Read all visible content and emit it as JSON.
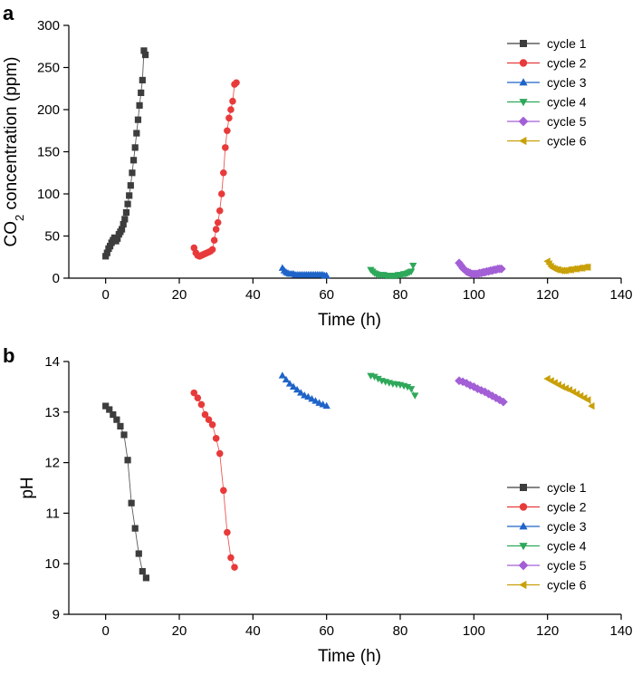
{
  "chart_data": [
    {
      "panel": "a",
      "type": "scatter",
      "xlabel": "Time (h)",
      "ylabel": {
        "prefix": "CO",
        "sub": "2",
        "suffix": " concentration (ppm)"
      },
      "xlim": [
        -10,
        140
      ],
      "ylim": [
        0,
        300
      ],
      "xticks": [
        0,
        20,
        40,
        60,
        80,
        100,
        120,
        140
      ],
      "yticks": [
        0,
        50,
        100,
        150,
        200,
        250,
        300
      ],
      "legend_position": "top-right",
      "series": [
        {
          "name": "cycle 1",
          "color": "#3d3d3d",
          "marker": "square",
          "x": [
            0,
            0.4,
            0.8,
            1.2,
            1.6,
            2,
            2.4,
            2.8,
            3.2,
            3.6,
            4,
            4.4,
            4.8,
            5.2,
            5.6,
            6,
            6.4,
            6.8,
            7.2,
            7.6,
            8,
            8.4,
            8.8,
            9.2,
            9.6,
            10,
            10.4,
            10.8
          ],
          "y": [
            26,
            30,
            35,
            38,
            42,
            45,
            48,
            44,
            47,
            52,
            55,
            58,
            64,
            70,
            78,
            88,
            98,
            110,
            125,
            140,
            155,
            172,
            188,
            205,
            220,
            235,
            270,
            265
          ]
        },
        {
          "name": "cycle 2",
          "color": "#e83a3a",
          "marker": "circle",
          "x": [
            24,
            24.5,
            25,
            25.5,
            26,
            26.5,
            27,
            27.5,
            28,
            28.5,
            29,
            29.5,
            30,
            30.5,
            31,
            31.5,
            32,
            32.5,
            33,
            33.5,
            34,
            34.5,
            35,
            35.5
          ],
          "y": [
            36,
            30,
            27,
            26,
            27,
            28,
            29,
            30,
            31,
            32,
            34,
            45,
            58,
            66,
            80,
            100,
            125,
            155,
            175,
            190,
            200,
            210,
            230,
            232
          ]
        },
        {
          "name": "cycle 3",
          "color": "#1e64c8",
          "marker": "triangle-up",
          "x": [
            48,
            48.5,
            49,
            49.5,
            50,
            50.5,
            51,
            51.5,
            52,
            52.5,
            53,
            53.5,
            54,
            54.5,
            55,
            55.5,
            56,
            56.5,
            57,
            57.5,
            58,
            58.5,
            59,
            59.5,
            60
          ],
          "y": [
            12,
            9,
            7,
            6,
            5,
            5,
            5,
            4,
            4,
            4,
            4,
            4,
            4,
            4,
            4,
            4,
            4,
            4,
            4,
            4,
            4,
            4,
            4,
            3,
            3
          ]
        },
        {
          "name": "cycle 4",
          "color": "#2ea85a",
          "marker": "triangle-down",
          "x": [
            72,
            72.5,
            73,
            73.5,
            74,
            74.5,
            75,
            75.5,
            76,
            76.5,
            77,
            77.5,
            78,
            78.5,
            79,
            79.5,
            80,
            80.5,
            81,
            81.5,
            82,
            82.5,
            83,
            83.5
          ],
          "y": [
            10,
            8,
            6,
            5,
            4,
            4,
            4,
            4,
            3,
            3,
            3,
            3,
            3,
            3,
            3,
            4,
            4,
            4,
            5,
            5,
            6,
            7,
            8,
            15
          ]
        },
        {
          "name": "cycle 5",
          "color": "#a35fd6",
          "marker": "diamond",
          "x": [
            96,
            96.5,
            97,
            97.5,
            98,
            98.5,
            99,
            99.5,
            100,
            100.5,
            101,
            101.5,
            102,
            102.5,
            103,
            103.5,
            104,
            104.5,
            105,
            105.5,
            106,
            106.5,
            107,
            107.5
          ],
          "y": [
            18,
            15,
            12,
            10,
            8,
            7,
            6,
            5,
            5,
            5,
            5,
            6,
            6,
            7,
            7,
            8,
            8,
            9,
            9,
            10,
            10,
            11,
            11,
            11
          ]
        },
        {
          "name": "cycle 6",
          "color": "#c9a008",
          "marker": "triangle-left",
          "x": [
            120,
            120.5,
            121,
            121.5,
            122,
            122.5,
            123,
            123.5,
            124,
            124.5,
            125,
            125.5,
            126,
            126.5,
            127,
            127.5,
            128,
            128.5,
            129,
            129.5,
            130,
            130.5,
            131
          ],
          "y": [
            20,
            17,
            14,
            12,
            11,
            10,
            10,
            9,
            9,
            9,
            9,
            10,
            10,
            10,
            11,
            11,
            11,
            12,
            12,
            12,
            13,
            13,
            13
          ]
        }
      ]
    },
    {
      "panel": "b",
      "type": "line",
      "xlabel": "Time (h)",
      "ylabel": "pH",
      "xlim": [
        -10,
        140
      ],
      "ylim": [
        9,
        14
      ],
      "xticks": [
        0,
        20,
        40,
        60,
        80,
        100,
        120,
        140
      ],
      "yticks": [
        9,
        10,
        11,
        12,
        13,
        14
      ],
      "legend_position": "bottom-right",
      "series": [
        {
          "name": "cycle 1",
          "color": "#3d3d3d",
          "marker": "square",
          "x": [
            0,
            1,
            2,
            3,
            4,
            5,
            6,
            7,
            8,
            9,
            10,
            11
          ],
          "y": [
            13.12,
            13.05,
            12.95,
            12.85,
            12.72,
            12.55,
            12.05,
            11.2,
            10.7,
            10.2,
            9.85,
            9.72
          ]
        },
        {
          "name": "cycle 2",
          "color": "#e83a3a",
          "marker": "circle",
          "x": [
            24,
            25,
            26,
            27,
            28,
            29,
            30,
            31,
            32,
            33,
            34,
            35
          ],
          "y": [
            13.38,
            13.28,
            13.15,
            12.95,
            12.85,
            12.75,
            12.48,
            12.18,
            11.45,
            10.62,
            10.12,
            9.93
          ]
        },
        {
          "name": "cycle 3",
          "color": "#1e64c8",
          "marker": "triangle-up",
          "x": [
            48,
            49,
            50,
            51,
            52,
            53,
            54,
            55,
            56,
            57,
            58,
            59,
            60
          ],
          "y": [
            13.72,
            13.64,
            13.56,
            13.5,
            13.44,
            13.38,
            13.33,
            13.3,
            13.26,
            13.22,
            13.18,
            13.15,
            13.12
          ]
        },
        {
          "name": "cycle 4",
          "color": "#2ea85a",
          "marker": "triangle-down",
          "x": [
            72,
            73,
            74,
            75,
            76,
            77,
            78,
            79,
            80,
            81,
            82,
            83,
            84
          ],
          "y": [
            13.72,
            13.7,
            13.66,
            13.62,
            13.6,
            13.58,
            13.56,
            13.55,
            13.54,
            13.52,
            13.5,
            13.46,
            13.33
          ]
        },
        {
          "name": "cycle 5",
          "color": "#a35fd6",
          "marker": "diamond",
          "x": [
            96,
            97,
            98,
            99,
            100,
            101,
            102,
            103,
            104,
            105,
            106,
            107,
            108
          ],
          "y": [
            13.62,
            13.6,
            13.57,
            13.53,
            13.5,
            13.46,
            13.43,
            13.4,
            13.36,
            13.32,
            13.28,
            13.24,
            13.2
          ]
        },
        {
          "name": "cycle 6",
          "color": "#c9a008",
          "marker": "triangle-left",
          "x": [
            120,
            121,
            122,
            123,
            124,
            125,
            126,
            127,
            128,
            129,
            130,
            131,
            132
          ],
          "y": [
            13.66,
            13.62,
            13.58,
            13.54,
            13.5,
            13.47,
            13.44,
            13.4,
            13.36,
            13.32,
            13.28,
            13.24,
            13.12
          ]
        }
      ]
    }
  ]
}
